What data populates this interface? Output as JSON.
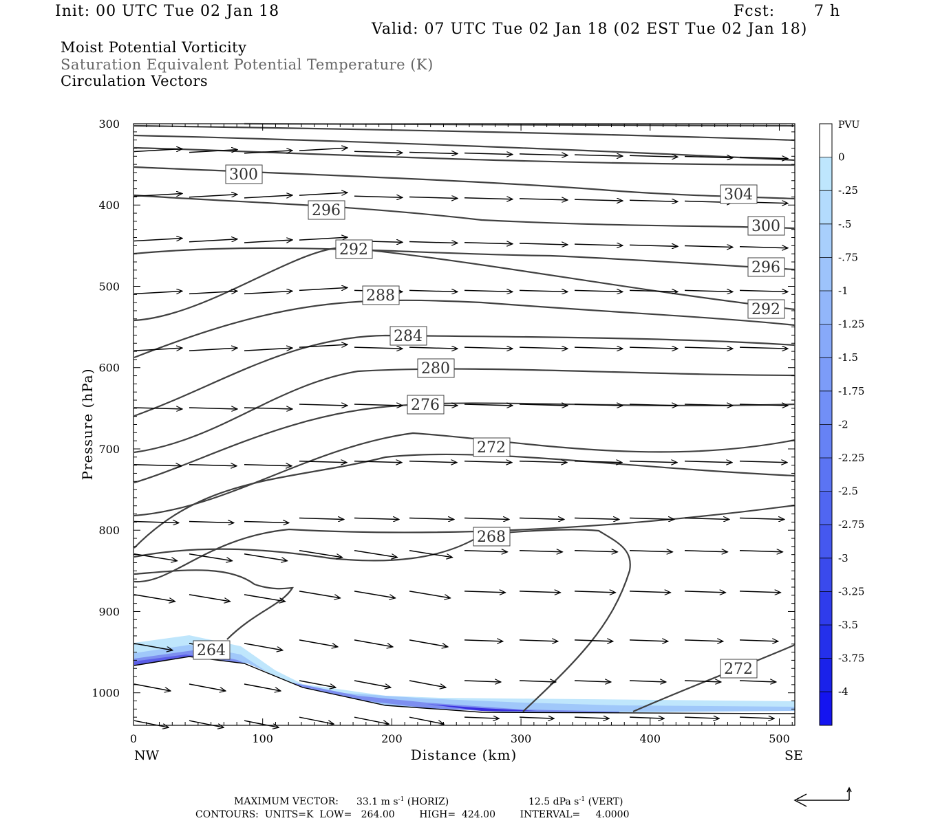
{
  "header": {
    "init": "Init: 00 UTC Tue 02 Jan 18",
    "fcst_label": "Fcst:",
    "fcst_value": "7 h",
    "valid": "Valid: 07 UTC Tue 02 Jan 18 (02 EST Tue 02 Jan 18)"
  },
  "fields": {
    "line1": "Moist Potential Vorticity",
    "line2": "Saturation Equivalent Potential Temperature (K)",
    "line3": "Circulation Vectors"
  },
  "colors": {
    "line2_text": "#666666",
    "contour": "#404040",
    "shade_light": "#a9dcfb",
    "shade_mid": "#7d8ff0",
    "shade_dark": "#3a2ee0"
  },
  "footer": {
    "max_vector_label": "MAXIMUM VECTOR:",
    "max_horiz": "33.1 m s",
    "max_horiz_unit": "(HORIZ)",
    "max_vert": "12.5 dPa s",
    "max_vert_unit": "(VERT)",
    "exp": "-1",
    "contours_line": "CONTOURS:  UNITS=K  LOW=   264.00        HIGH=  424.00        INTERVAL=     4.0000"
  },
  "chart_data": {
    "type": "line",
    "title": "Moist Potential Vorticity / Saturation Equivalent Potential Temperature (K) / Circulation Vectors",
    "xlabel": "Distance (km)",
    "ylabel": "Pressure (hPa)",
    "xlim": [
      0,
      512
    ],
    "ylim": [
      1040,
      300
    ],
    "x_ticks": [
      "0",
      "100",
      "200",
      "300",
      "400",
      "500"
    ],
    "y_ticks": [
      "300",
      "400",
      "500",
      "600",
      "700",
      "800",
      "900",
      "1000"
    ],
    "x_end_labels": {
      "left": "NW",
      "right": "SE"
    },
    "grid": false,
    "contour_units": "K",
    "contour_low": 264,
    "contour_high": 424,
    "contour_interval": 4,
    "contours": [
      {
        "label": "300",
        "label_at": [
          85,
          352
        ]
      },
      {
        "label": "304",
        "label_at": [
          468,
          377
        ]
      },
      {
        "label": "296",
        "label_at": [
          149,
          405
        ]
      },
      {
        "label": "300",
        "label_at": [
          490,
          415
        ]
      },
      {
        "label": "292",
        "label_at": [
          170,
          456
        ]
      },
      {
        "label": "296",
        "label_at": [
          490,
          466
        ]
      },
      {
        "label": "288",
        "label_at": [
          191,
          511
        ]
      },
      {
        "label": "292",
        "label_at": [
          490,
          528
        ]
      },
      {
        "label": "284",
        "label_at": [
          212,
          563
        ]
      },
      {
        "label": "280",
        "label_at": [
          233,
          603
        ]
      },
      {
        "label": "276",
        "label_at": [
          226,
          647
        ]
      },
      {
        "label": "272",
        "label_at": [
          277,
          697
        ]
      },
      {
        "label": "268",
        "label_at": [
          277,
          806
        ]
      },
      {
        "label": "264",
        "label_at": [
          60,
          955
        ]
      },
      {
        "label": "272",
        "label_at": [
          468,
          969
        ]
      }
    ],
    "colorbar": {
      "units": "PVU",
      "labels": [
        "0",
        "-.25",
        "-.5",
        "-.75",
        "-1",
        "-1.25",
        "-1.5",
        "-1.75",
        "-2",
        "-2.25",
        "-2.5",
        "-2.75",
        "-3",
        "-3.25",
        "-3.5",
        "-3.75",
        "-4"
      ],
      "colors": [
        "#ffffff",
        "#bee6fd",
        "#b3dbfd",
        "#a8cffc",
        "#9dc3fb",
        "#92b6fa",
        "#87a9f9",
        "#7c9cf8",
        "#718ff7",
        "#6682f5",
        "#5b74f3",
        "#5066f1",
        "#4558ef",
        "#3a4aed",
        "#2f3cec",
        "#2430eb",
        "#1a22ea",
        "#1414f0"
      ]
    },
    "vectors": {
      "max_horizontal": 33.1,
      "max_horizontal_units": "m s-1",
      "max_vertical": 12.5,
      "max_vertical_units": "dPa s-1"
    }
  }
}
